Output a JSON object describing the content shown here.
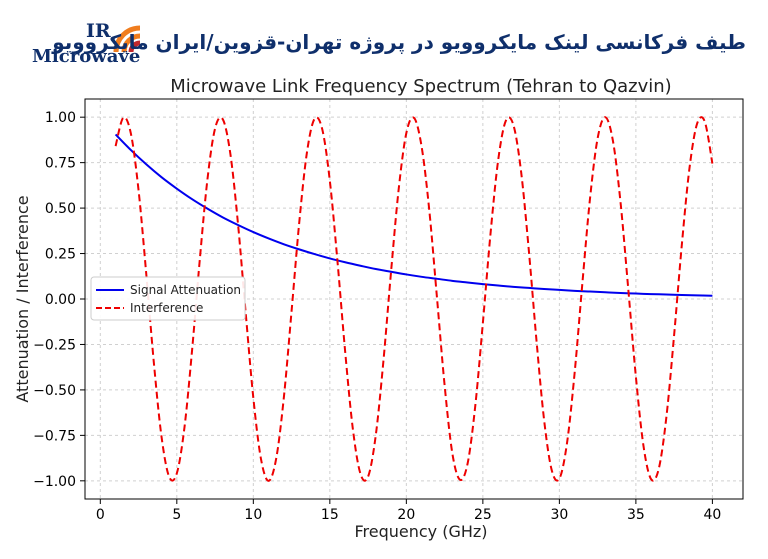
{
  "logo": {
    "line1": "IR",
    "line2": "Microwave"
  },
  "banner": "طیف فرکانسی لینک مایکروویو در پروژه تهران-قزوین/ایران مایکروویو",
  "colors": {
    "signal": "#0000ee",
    "interference": "#ee0000",
    "grid": "#d0d0d0",
    "logo_navy": "#0f2f6b",
    "logo_orange": "#f07d1e",
    "logo_red": "#c0282d"
  },
  "chart_data": {
    "type": "line",
    "title": "Microwave Link Frequency Spectrum (Tehran to Qazvin)",
    "xlabel": "Frequency (GHz)",
    "ylabel": "Attenuation / Interference",
    "xlim": [
      -1,
      42
    ],
    "ylim": [
      -1.1,
      1.1
    ],
    "xticks": [
      0,
      5,
      10,
      15,
      20,
      25,
      30,
      35,
      40
    ],
    "xtick_labels": [
      "0",
      "5",
      "10",
      "15",
      "20",
      "25",
      "30",
      "35",
      "40"
    ],
    "yticks": [
      1.0,
      0.75,
      0.5,
      0.25,
      0.0,
      -0.25,
      -0.5,
      -0.75,
      -1.0
    ],
    "ytick_labels": [
      "1.00",
      "0.75",
      "0.50",
      "0.25",
      "0.00",
      "−0.25",
      "−0.50",
      "−0.75",
      "−1.00"
    ],
    "grid": true,
    "legend_position": "center-left",
    "series": [
      {
        "name": "Signal Attenuation",
        "style": "solid",
        "x": [
          1,
          2,
          3,
          4,
          5,
          6,
          7,
          8,
          9,
          10,
          11,
          12,
          13,
          14,
          15,
          16,
          17,
          18,
          19,
          20,
          21,
          22,
          23,
          24,
          25,
          26,
          27,
          28,
          29,
          30,
          31,
          32,
          33,
          34,
          35,
          36,
          37,
          38,
          39,
          40
        ],
        "y": [
          0.905,
          0.819,
          0.741,
          0.67,
          0.607,
          0.549,
          0.497,
          0.449,
          0.407,
          0.368,
          0.333,
          0.301,
          0.273,
          0.247,
          0.223,
          0.202,
          0.183,
          0.165,
          0.15,
          0.135,
          0.122,
          0.111,
          0.1,
          0.091,
          0.082,
          0.074,
          0.067,
          0.061,
          0.055,
          0.05,
          0.045,
          0.041,
          0.037,
          0.033,
          0.03,
          0.027,
          0.025,
          0.022,
          0.02,
          0.018
        ]
      },
      {
        "name": "Interference",
        "style": "dashed",
        "x": [
          1.0,
          1.5,
          2.0,
          2.5,
          3.0,
          3.5,
          4.0,
          4.5,
          5.0,
          5.5,
          6.0,
          6.5,
          7.0,
          7.5,
          8.0,
          8.5,
          9.0,
          9.5,
          10.0,
          10.5,
          11.0,
          11.5,
          12.0,
          12.5,
          13.0,
          13.5,
          14.0,
          14.5,
          15.0,
          15.5,
          16.0,
          16.5,
          17.0,
          17.5,
          18.0,
          18.5,
          19.0,
          19.5,
          20.0,
          20.5,
          21.0,
          21.5,
          22.0,
          22.5,
          23.0,
          23.5,
          24.0,
          24.5,
          25.0,
          25.5,
          26.0,
          26.5,
          27.0,
          27.5,
          28.0,
          28.5,
          29.0,
          29.5,
          30.0,
          30.5,
          31.0,
          31.5,
          32.0,
          32.5,
          33.0,
          33.5,
          34.0,
          34.5,
          35.0,
          35.5,
          36.0,
          36.5,
          37.0,
          37.5,
          38.0,
          38.5,
          39.0,
          39.5,
          40.0
        ],
        "y": [
          0.841,
          0.997,
          0.909,
          0.598,
          0.141,
          -0.351,
          -0.757,
          -0.978,
          -0.959,
          -0.706,
          -0.279,
          0.215,
          0.657,
          0.938,
          0.989,
          0.798,
          0.412,
          -0.075,
          -0.544,
          -0.88,
          -1.0,
          -0.875,
          -0.537,
          -0.066,
          0.42,
          0.804,
          0.991,
          0.935,
          0.65,
          0.206,
          -0.288,
          -0.712,
          -0.961,
          -0.977,
          -0.751,
          -0.342,
          0.15,
          0.605,
          0.913,
          0.996,
          0.837,
          0.487,
          0.009,
          -0.474,
          -0.846,
          -0.994,
          -0.906,
          -0.591,
          -0.132,
          0.359,
          0.763,
          0.98,
          0.956,
          0.699,
          0.271,
          -0.224,
          -0.664,
          -0.941,
          -0.988,
          -0.792,
          -0.404,
          0.084,
          0.551,
          0.884,
          1.0,
          0.87,
          0.529,
          0.057,
          -0.428,
          -0.81,
          -0.992,
          -0.932,
          -0.644,
          -0.197,
          0.296,
          0.718,
          0.964,
          0.976,
          0.745
        ]
      }
    ]
  }
}
